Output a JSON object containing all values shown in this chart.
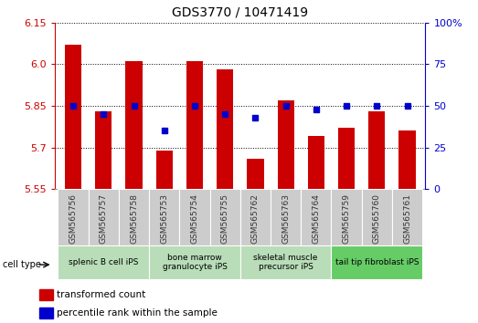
{
  "title": "GDS3770 / 10471419",
  "samples": [
    "GSM565756",
    "GSM565757",
    "GSM565758",
    "GSM565753",
    "GSM565754",
    "GSM565755",
    "GSM565762",
    "GSM565763",
    "GSM565764",
    "GSM565759",
    "GSM565760",
    "GSM565761"
  ],
  "transformed_count": [
    6.07,
    5.83,
    6.01,
    5.69,
    6.01,
    5.98,
    5.66,
    5.87,
    5.74,
    5.77,
    5.83,
    5.76
  ],
  "percentile_rank": [
    50,
    45,
    50,
    35,
    50,
    45,
    43,
    50,
    48,
    50,
    50,
    50
  ],
  "ylim_left": [
    5.55,
    6.15
  ],
  "ylim_right": [
    0,
    100
  ],
  "yticks_left": [
    5.55,
    5.7,
    5.85,
    6.0,
    6.15
  ],
  "yticks_right": [
    0,
    25,
    50,
    75,
    100
  ],
  "ytick_labels_right": [
    "0",
    "25",
    "50",
    "75",
    "100%"
  ],
  "groups": [
    {
      "label": "splenic B cell iPS",
      "start": 0,
      "end": 2,
      "color": "#b8ddb8"
    },
    {
      "label": "bone marrow\ngranulocyte iPS",
      "start": 3,
      "end": 5,
      "color": "#b8ddb8"
    },
    {
      "label": "skeletal muscle\nprecursor iPS",
      "start": 6,
      "end": 8,
      "color": "#b8ddb8"
    },
    {
      "label": "tail tip fibroblast iPS",
      "start": 9,
      "end": 11,
      "color": "#66cc66"
    }
  ],
  "bar_color": "#cc0000",
  "dot_color": "#0000cc",
  "axis_color_left": "#cc0000",
  "axis_color_right": "#0000cc",
  "sample_box_color": "#cccccc",
  "legend_items": [
    {
      "label": "transformed count",
      "color": "#cc0000",
      "marker": "s"
    },
    {
      "label": "percentile rank within the sample",
      "color": "#0000cc",
      "marker": "s"
    }
  ],
  "cell_type_label": "cell type"
}
